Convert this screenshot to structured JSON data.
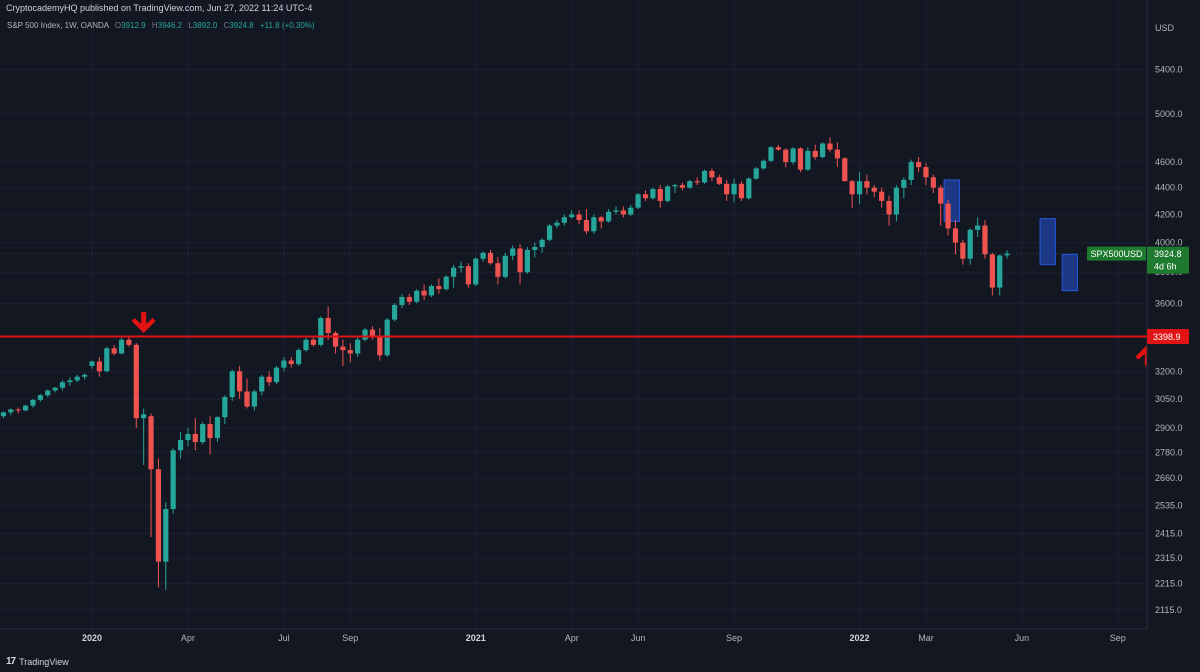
{
  "header": {
    "published_line": "CryptocademyHQ published on TradingView.com, Jun 27, 2022 11:24 UTC-4"
  },
  "legend": {
    "symbol": "S&P 500 Index, 1W, OANDA",
    "open_label": "O",
    "open": "3912.9",
    "high_label": "H",
    "high": "3946.2",
    "low_label": "L",
    "low": "3892.0",
    "close_label": "C",
    "close": "3924.8",
    "change": "+11.8 (+0.30%)"
  },
  "footer": {
    "brand_logo": "17",
    "brand_name": "TradingView"
  },
  "colors": {
    "background": "#131722",
    "up": "#26a69a",
    "down": "#ef5350",
    "level_line": "#e01414",
    "highlight_box": "#2962ff",
    "price_tag": "#1e7a2e"
  },
  "chart_data": {
    "type": "candlestick",
    "title": "",
    "currency_label": "USD",
    "y_scale": "log",
    "y_ticks": [
      2115,
      2215,
      2315,
      2415,
      2535,
      2660,
      2780,
      2900,
      3050,
      3200,
      3600,
      3800,
      4000,
      4200,
      4400,
      4600,
      5000,
      5400
    ],
    "y_tick_labels": [
      "2115.0",
      "2215.0",
      "2315.0",
      "2415.0",
      "2535.0",
      "2660.0",
      "2780.0",
      "2900.0",
      "3050.0",
      "3200.0",
      "3600.0",
      "3800.0",
      "4000.0",
      "4200.0",
      "4400.0",
      "4600.0",
      "5000.0",
      "5400.0"
    ],
    "x_ticks": [
      {
        "label": "2020",
        "week": 0,
        "bold": true
      },
      {
        "label": "Apr",
        "week": 13,
        "bold": false
      },
      {
        "label": "Jul",
        "week": 26,
        "bold": false
      },
      {
        "label": "Sep",
        "week": 35,
        "bold": false
      },
      {
        "label": "2021",
        "week": 52,
        "bold": true
      },
      {
        "label": "Apr",
        "week": 65,
        "bold": false
      },
      {
        "label": "Jun",
        "week": 74,
        "bold": false
      },
      {
        "label": "Sep",
        "week": 87,
        "bold": false
      },
      {
        "label": "2022",
        "week": 104,
        "bold": true
      },
      {
        "label": "Mar",
        "week": 113,
        "bold": false
      },
      {
        "label": "Jun",
        "week": 126,
        "bold": false
      },
      {
        "label": "Sep",
        "week": 139,
        "bold": false
      }
    ],
    "start_week": -12,
    "candles": [
      [
        2960,
        2985,
        2950,
        2980
      ],
      [
        2980,
        3000,
        2965,
        2995
      ],
      [
        2995,
        3005,
        2975,
        2990
      ],
      [
        2990,
        3020,
        2985,
        3015
      ],
      [
        3015,
        3050,
        3005,
        3045
      ],
      [
        3045,
        3075,
        3035,
        3070
      ],
      [
        3070,
        3100,
        3060,
        3095
      ],
      [
        3095,
        3115,
        3085,
        3110
      ],
      [
        3110,
        3150,
        3095,
        3140
      ],
      [
        3140,
        3165,
        3120,
        3150
      ],
      [
        3150,
        3180,
        3140,
        3170
      ],
      [
        3170,
        3190,
        3155,
        3180
      ],
      [
        3230,
        3260,
        3215,
        3255
      ],
      [
        3255,
        3280,
        3170,
        3200
      ],
      [
        3200,
        3340,
        3195,
        3330
      ],
      [
        3330,
        3350,
        3290,
        3300
      ],
      [
        3300,
        3390,
        3295,
        3380
      ],
      [
        3380,
        3395,
        3340,
        3350
      ],
      [
        3350,
        3360,
        2900,
        2950
      ],
      [
        2950,
        3000,
        2720,
        2970
      ],
      [
        2960,
        2975,
        2400,
        2700
      ],
      [
        2700,
        2750,
        2200,
        2300
      ],
      [
        2300,
        2550,
        2190,
        2520
      ],
      [
        2520,
        2800,
        2500,
        2790
      ],
      [
        2790,
        2880,
        2750,
        2840
      ],
      [
        2840,
        2900,
        2810,
        2870
      ],
      [
        2870,
        2950,
        2790,
        2830
      ],
      [
        2830,
        2930,
        2820,
        2920
      ],
      [
        2920,
        2960,
        2770,
        2850
      ],
      [
        2850,
        2960,
        2830,
        2955
      ],
      [
        2955,
        3070,
        2920,
        3060
      ],
      [
        3060,
        3210,
        3040,
        3200
      ],
      [
        3200,
        3230,
        3050,
        3090
      ],
      [
        3090,
        3160,
        3000,
        3010
      ],
      [
        3010,
        3100,
        2990,
        3090
      ],
      [
        3090,
        3180,
        3070,
        3170
      ],
      [
        3170,
        3200,
        3120,
        3140
      ],
      [
        3140,
        3230,
        3130,
        3220
      ],
      [
        3220,
        3280,
        3200,
        3260
      ],
      [
        3260,
        3280,
        3220,
        3240
      ],
      [
        3240,
        3330,
        3230,
        3320
      ],
      [
        3320,
        3390,
        3310,
        3380
      ],
      [
        3380,
        3400,
        3340,
        3350
      ],
      [
        3350,
        3520,
        3340,
        3510
      ],
      [
        3510,
        3580,
        3380,
        3420
      ],
      [
        3420,
        3430,
        3300,
        3340
      ],
      [
        3340,
        3380,
        3230,
        3320
      ],
      [
        3320,
        3360,
        3250,
        3300
      ],
      [
        3300,
        3400,
        3280,
        3380
      ],
      [
        3380,
        3450,
        3370,
        3440
      ],
      [
        3440,
        3460,
        3380,
        3400
      ],
      [
        3400,
        3450,
        3260,
        3290
      ],
      [
        3290,
        3510,
        3280,
        3500
      ],
      [
        3500,
        3600,
        3490,
        3590
      ],
      [
        3590,
        3660,
        3570,
        3640
      ],
      [
        3640,
        3660,
        3590,
        3610
      ],
      [
        3610,
        3690,
        3600,
        3680
      ],
      [
        3680,
        3720,
        3620,
        3650
      ],
      [
        3650,
        3720,
        3640,
        3710
      ],
      [
        3710,
        3760,
        3660,
        3690
      ],
      [
        3690,
        3780,
        3680,
        3770
      ],
      [
        3770,
        3850,
        3700,
        3830
      ],
      [
        3830,
        3870,
        3800,
        3840
      ],
      [
        3840,
        3860,
        3700,
        3720
      ],
      [
        3720,
        3900,
        3710,
        3890
      ],
      [
        3890,
        3940,
        3870,
        3930
      ],
      [
        3930,
        3950,
        3850,
        3860
      ],
      [
        3860,
        3900,
        3720,
        3770
      ],
      [
        3770,
        3930,
        3760,
        3910
      ],
      [
        3910,
        3980,
        3880,
        3960
      ],
      [
        3960,
        3990,
        3720,
        3800
      ],
      [
        3800,
        3970,
        3790,
        3950
      ],
      [
        3950,
        4000,
        3900,
        3970
      ],
      [
        3970,
        4030,
        3930,
        4020
      ],
      [
        4020,
        4130,
        4010,
        4120
      ],
      [
        4120,
        4160,
        4100,
        4140
      ],
      [
        4140,
        4200,
        4120,
        4180
      ],
      [
        4180,
        4230,
        4170,
        4200
      ],
      [
        4200,
        4230,
        4130,
        4160
      ],
      [
        4160,
        4240,
        4060,
        4080
      ],
      [
        4080,
        4200,
        4060,
        4180
      ],
      [
        4180,
        4190,
        4100,
        4150
      ],
      [
        4150,
        4240,
        4140,
        4220
      ],
      [
        4220,
        4260,
        4200,
        4230
      ],
      [
        4230,
        4260,
        4180,
        4200
      ],
      [
        4200,
        4270,
        4190,
        4250
      ],
      [
        4250,
        4360,
        4240,
        4350
      ],
      [
        4350,
        4380,
        4300,
        4320
      ],
      [
        4320,
        4400,
        4310,
        4390
      ],
      [
        4390,
        4420,
        4250,
        4300
      ],
      [
        4300,
        4420,
        4290,
        4410
      ],
      [
        4410,
        4430,
        4360,
        4420
      ],
      [
        4420,
        4440,
        4380,
        4400
      ],
      [
        4400,
        4460,
        4390,
        4450
      ],
      [
        4450,
        4480,
        4420,
        4440
      ],
      [
        4440,
        4540,
        4430,
        4530
      ],
      [
        4530,
        4550,
        4450,
        4480
      ],
      [
        4480,
        4500,
        4420,
        4430
      ],
      [
        4430,
        4460,
        4300,
        4350
      ],
      [
        4350,
        4470,
        4290,
        4430
      ],
      [
        4430,
        4450,
        4300,
        4320
      ],
      [
        4320,
        4480,
        4310,
        4470
      ],
      [
        4470,
        4560,
        4460,
        4550
      ],
      [
        4550,
        4620,
        4540,
        4610
      ],
      [
        4610,
        4730,
        4600,
        4720
      ],
      [
        4720,
        4740,
        4690,
        4700
      ],
      [
        4700,
        4710,
        4560,
        4600
      ],
      [
        4600,
        4720,
        4580,
        4710
      ],
      [
        4710,
        4720,
        4520,
        4540
      ],
      [
        4540,
        4720,
        4530,
        4690
      ],
      [
        4690,
        4740,
        4620,
        4640
      ],
      [
        4640,
        4760,
        4630,
        4750
      ],
      [
        4750,
        4800,
        4680,
        4700
      ],
      [
        4700,
        4760,
        4560,
        4630
      ],
      [
        4630,
        4640,
        4450,
        4450
      ],
      [
        4450,
        4460,
        4250,
        4350
      ],
      [
        4350,
        4520,
        4280,
        4450
      ],
      [
        4450,
        4500,
        4350,
        4400
      ],
      [
        4400,
        4420,
        4330,
        4370
      ],
      [
        4370,
        4400,
        4250,
        4300
      ],
      [
        4300,
        4340,
        4120,
        4200
      ],
      [
        4200,
        4420,
        4150,
        4400
      ],
      [
        4400,
        4480,
        4320,
        4460
      ],
      [
        4460,
        4620,
        4420,
        4600
      ],
      [
        4600,
        4640,
        4520,
        4560
      ],
      [
        4560,
        4590,
        4420,
        4480
      ],
      [
        4480,
        4500,
        4360,
        4400
      ],
      [
        4400,
        4420,
        4120,
        4280
      ],
      [
        4280,
        4310,
        4050,
        4100
      ],
      [
        4100,
        4160,
        3920,
        4000
      ],
      [
        4000,
        4020,
        3850,
        3890
      ],
      [
        3890,
        4100,
        3850,
        4090
      ],
      [
        4090,
        4180,
        4040,
        4120
      ],
      [
        4120,
        4160,
        3890,
        3920
      ],
      [
        3920,
        3930,
        3650,
        3700
      ],
      [
        3700,
        3920,
        3650,
        3912
      ],
      [
        3912.9,
        3946.2,
        3892,
        3924.8
      ]
    ],
    "highlight_boxes": [
      {
        "week_from": 116,
        "week_to": 117,
        "low": 4150,
        "high": 4460,
        "label": ""
      },
      {
        "week_from": 129,
        "week_to": 130,
        "low": 3850,
        "high": 4170,
        "label": ""
      },
      {
        "week_from": 132,
        "week_to": 133,
        "low": 3680,
        "high": 3920,
        "label": ""
      }
    ],
    "level": {
      "value": 3398.9,
      "label": "3398.9"
    },
    "arrows": [
      {
        "week": 7,
        "price": 3390,
        "direction": "down"
      },
      {
        "week": 143,
        "price": 3380,
        "direction": "up"
      }
    ],
    "last_price": {
      "value": 3924.8,
      "symbol": "SPX500USD",
      "label": "3924.8",
      "countdown": "4d 6h"
    }
  }
}
